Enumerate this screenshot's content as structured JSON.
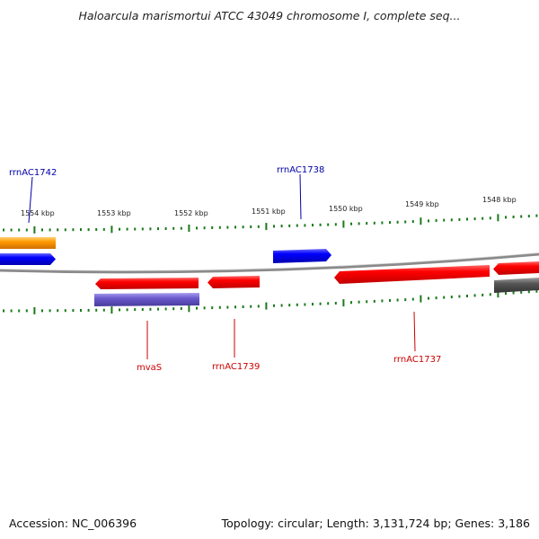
{
  "title": "Haloarcula marismortui ATCC 43049 chromosome I, complete seq...",
  "footer": {
    "accession": "Accession: NC_006396",
    "topology": "Topology: circular; Length: 3,131,724 bp; Genes: 3,186"
  },
  "colors": {
    "forward_gene": "#0000ff",
    "reverse_gene": "#ff0000",
    "orange_feature": "#ff9900",
    "purple_feature": "#6a5acd",
    "gray_feature": "#555555",
    "tick": "#1a7a1a",
    "backbone": "#888888"
  },
  "kbp_ticks": [
    "1554 kbp",
    "1553 kbp",
    "1552 kbp",
    "1551 kbp",
    "1550 kbp",
    "1549 kbp",
    "1548 kbp"
  ],
  "gene_labels": {
    "top": [
      {
        "name": "rrnAC1742",
        "color": "#0000aa"
      },
      {
        "name": "rrnAC1738",
        "color": "#0000aa"
      }
    ],
    "bottom": [
      {
        "name": "mvaS",
        "color": "#cc0000"
      },
      {
        "name": "rrnAC1739",
        "color": "#cc0000"
      },
      {
        "name": "rrnAC1737",
        "color": "#cc0000"
      }
    ]
  }
}
